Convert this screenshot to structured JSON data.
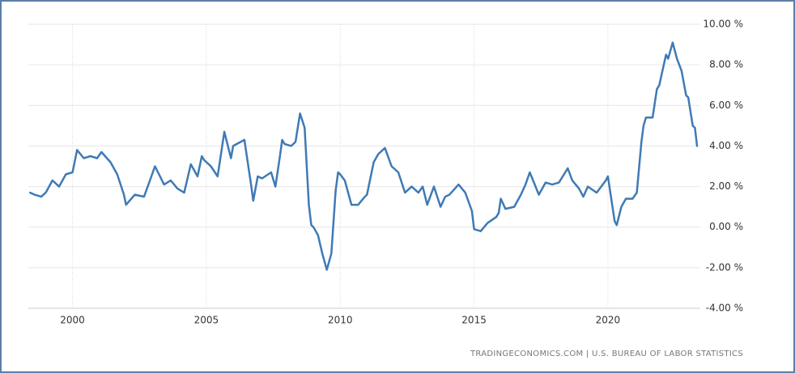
{
  "chart_data": {
    "type": "line",
    "source": "TRADINGECONOMICS.COM | U.S. BUREAU OF LABOR STATISTICS",
    "color": "#3f7ab5",
    "grid": true,
    "xlim": [
      1998.35,
      2023.45
    ],
    "xticks": [
      2000,
      2005,
      2010,
      2015,
      2020
    ],
    "ylim": [
      -4,
      10
    ],
    "yticks": [
      {
        "value": -4,
        "label": "-4.00 %"
      },
      {
        "value": -2,
        "label": "-2.00 %"
      },
      {
        "value": 0,
        "label": "0.00 %"
      },
      {
        "value": 2,
        "label": "2.00 %"
      },
      {
        "value": 4,
        "label": "4.00 %"
      },
      {
        "value": 6,
        "label": "6.00 %"
      },
      {
        "value": 8,
        "label": "8.00 %"
      },
      {
        "value": 10,
        "label": "10.00 %"
      }
    ],
    "x": [
      1998.42,
      1998.58,
      1998.83,
      1999.0,
      1999.25,
      1999.5,
      1999.75,
      2000.0,
      2000.17,
      2000.42,
      2000.67,
      2000.92,
      2001.08,
      2001.42,
      2001.67,
      2001.92,
      2002.0,
      2002.33,
      2002.67,
      2002.92,
      2003.08,
      2003.42,
      2003.67,
      2003.92,
      2004.17,
      2004.42,
      2004.67,
      2004.83,
      2004.92,
      2005.17,
      2005.42,
      2005.67,
      2005.92,
      2006.0,
      2006.42,
      2006.67,
      2006.75,
      2006.92,
      2007.08,
      2007.42,
      2007.58,
      2007.75,
      2007.83,
      2007.92,
      2008.17,
      2008.33,
      2008.5,
      2008.67,
      2008.83,
      2008.92,
      2009.0,
      2009.17,
      2009.33,
      2009.5,
      2009.67,
      2009.83,
      2009.92,
      2010.0,
      2010.17,
      2010.42,
      2010.67,
      2010.92,
      2011.0,
      2011.25,
      2011.42,
      2011.67,
      2011.92,
      2012.17,
      2012.42,
      2012.67,
      2012.92,
      2013.08,
      2013.25,
      2013.5,
      2013.75,
      2013.92,
      2014.08,
      2014.42,
      2014.67,
      2014.92,
      2015.0,
      2015.25,
      2015.5,
      2015.83,
      2015.92,
      2016.0,
      2016.17,
      2016.5,
      2016.75,
      2016.92,
      2017.08,
      2017.42,
      2017.67,
      2017.92,
      2018.17,
      2018.5,
      2018.67,
      2018.92,
      2019.08,
      2019.25,
      2019.58,
      2019.92,
      2020.0,
      2020.25,
      2020.33,
      2020.5,
      2020.67,
      2020.92,
      2021.08,
      2021.25,
      2021.33,
      2021.42,
      2021.67,
      2021.83,
      2021.92,
      2022.0,
      2022.17,
      2022.25,
      2022.42,
      2022.58,
      2022.75,
      2022.92,
      2023.0,
      2023.17,
      2023.25,
      2023.33
    ],
    "values": [
      1.7,
      1.6,
      1.5,
      1.7,
      2.3,
      2.0,
      2.6,
      2.7,
      3.8,
      3.4,
      3.5,
      3.4,
      3.7,
      3.2,
      2.6,
      1.6,
      1.1,
      1.6,
      1.5,
      2.4,
      3.0,
      2.1,
      2.3,
      1.9,
      1.7,
      3.1,
      2.5,
      3.5,
      3.3,
      3.0,
      2.5,
      4.7,
      3.4,
      4.0,
      4.3,
      2.1,
      1.3,
      2.5,
      2.4,
      2.7,
      2.0,
      3.5,
      4.3,
      4.1,
      4.0,
      4.2,
      5.6,
      4.9,
      1.1,
      0.1,
      0.0,
      -0.4,
      -1.3,
      -2.1,
      -1.3,
      1.8,
      2.7,
      2.6,
      2.3,
      1.1,
      1.1,
      1.5,
      1.6,
      3.2,
      3.6,
      3.9,
      3.0,
      2.7,
      1.7,
      2.0,
      1.7,
      2.0,
      1.1,
      2.0,
      1.0,
      1.5,
      1.6,
      2.1,
      1.7,
      0.8,
      -0.1,
      -0.2,
      0.2,
      0.5,
      0.7,
      1.4,
      0.9,
      1.0,
      1.6,
      2.1,
      2.7,
      1.6,
      2.2,
      2.1,
      2.2,
      2.9,
      2.3,
      1.9,
      1.5,
      2.0,
      1.7,
      2.3,
      2.5,
      0.3,
      0.1,
      1.0,
      1.4,
      1.4,
      1.7,
      4.2,
      5.0,
      5.4,
      5.4,
      6.8,
      7.0,
      7.5,
      8.5,
      8.3,
      9.1,
      8.3,
      7.7,
      6.5,
      6.4,
      5.0,
      4.9,
      4.0
    ]
  }
}
